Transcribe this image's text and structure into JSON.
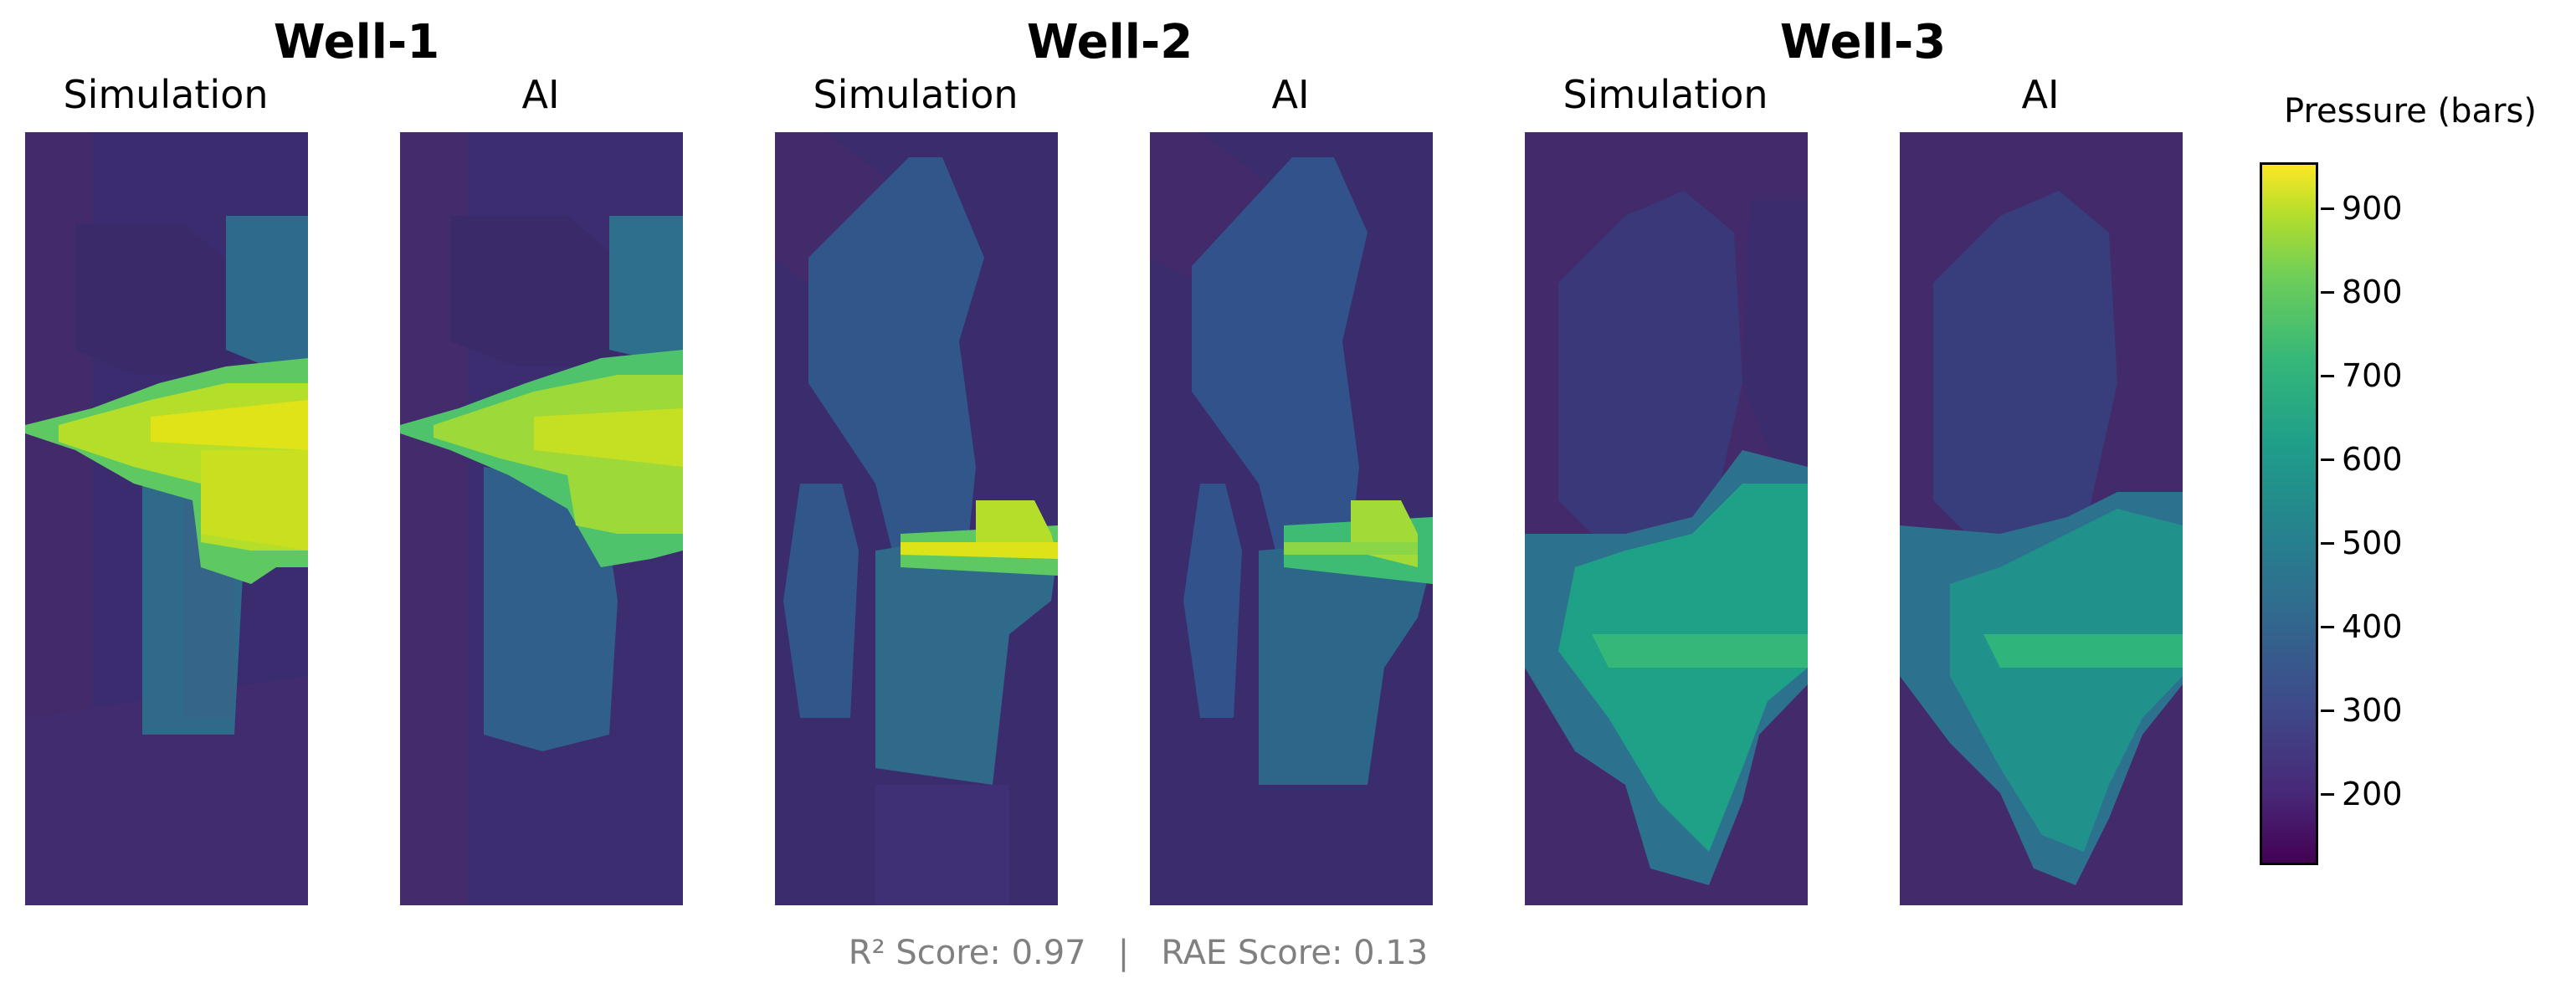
{
  "chart_data": {
    "type": "heatmap",
    "wells": [
      {
        "title": "Well-1",
        "panels": [
          {
            "title": "Simulation"
          },
          {
            "title": "AI"
          }
        ]
      },
      {
        "title": "Well-2",
        "panels": [
          {
            "title": "Simulation"
          },
          {
            "title": "AI"
          }
        ]
      },
      {
        "title": "Well-3",
        "panels": [
          {
            "title": "Simulation"
          },
          {
            "title": "AI"
          }
        ]
      }
    ],
    "colorbar": {
      "label": "Pressure (bars)",
      "colormap": "viridis",
      "range": [
        110,
        960
      ],
      "ticks": [
        "900",
        "800",
        "700",
        "600",
        "500",
        "400",
        "300",
        "200"
      ]
    },
    "footer": "R² Score: 0.97   |   RAE Score: 0.13"
  }
}
